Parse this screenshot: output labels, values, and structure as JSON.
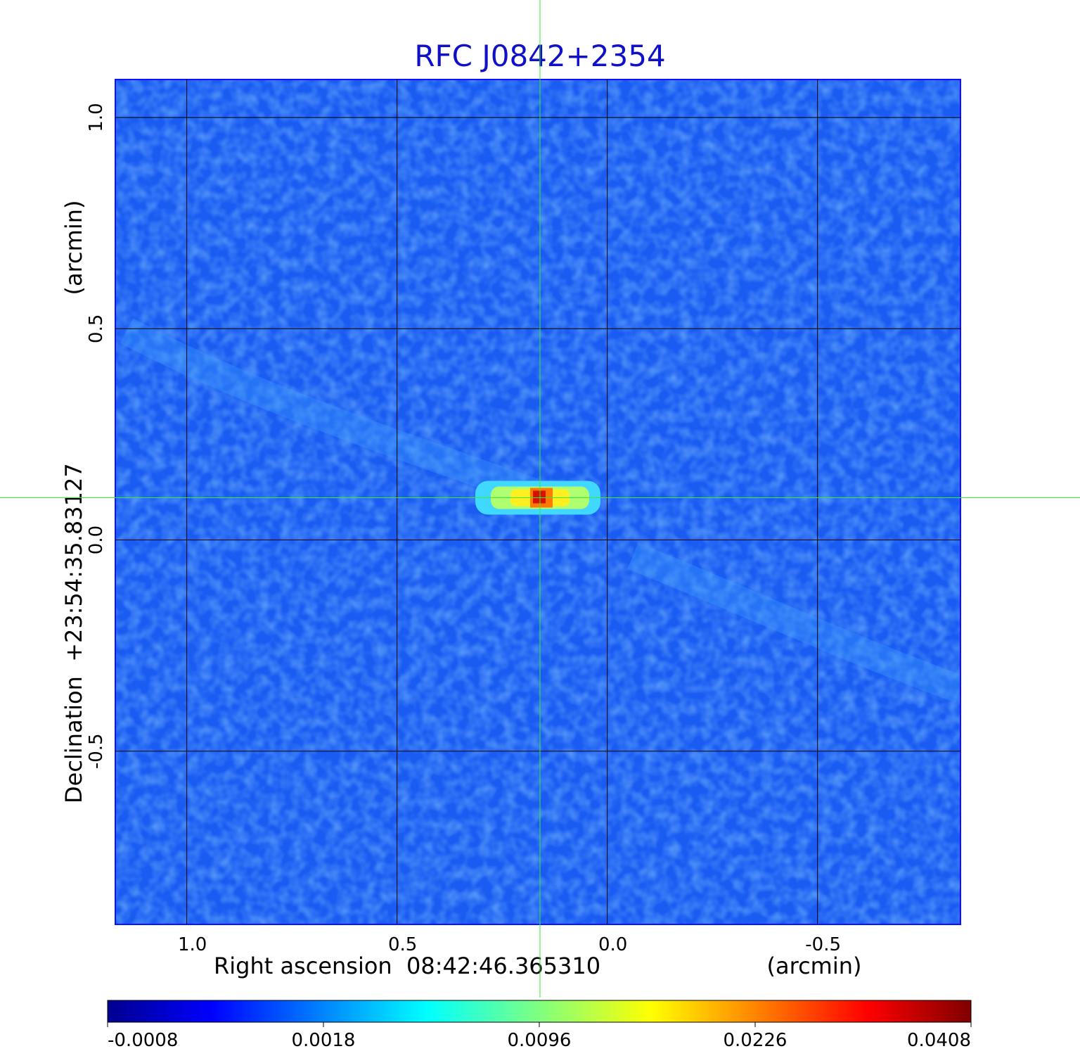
{
  "chart_data": {
    "type": "heatmap",
    "title": "RFC J0842+2354",
    "xlabel": "Right ascension  08:42:46.365310",
    "xunit": "(arcmin)",
    "ylabel": "Declination  +23:54:35.83127",
    "yunit": "(arcmin)",
    "x_ticks": [
      "1.0",
      "0.5",
      "0.0",
      "-0.5"
    ],
    "y_ticks": [
      "1.0",
      "0.5",
      "0.0",
      "-0.5"
    ],
    "xlim": [
      1.17,
      -0.84
    ],
    "ylim": [
      -0.91,
      1.09
    ],
    "x_reversed": true,
    "grid": true,
    "crosshair": {
      "x": 0.16,
      "y": 0.1
    },
    "source_peak": {
      "x": 0.16,
      "y": 0.1,
      "value": 0.0408
    },
    "background_level": -0.0002,
    "colorbar": {
      "ticks": [
        "-0.0008",
        "0.0018",
        "0.0096",
        "0.0226",
        "0.0408"
      ],
      "colormap": "jet",
      "scale": "nonlinear"
    }
  }
}
